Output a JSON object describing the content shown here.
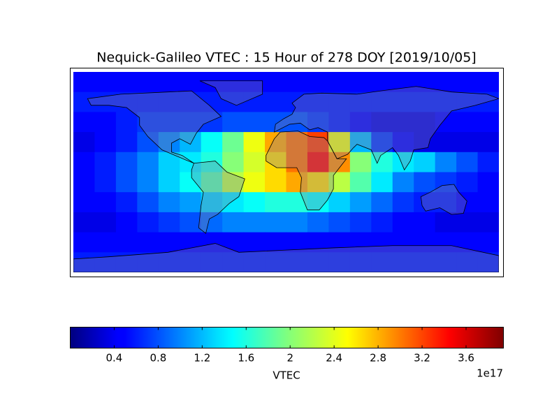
{
  "chart_data": {
    "type": "heatmap",
    "title": "Nequick-Galileo VTEC : 15 Hour of 278 DOY [2019/10/05]",
    "colormap": "jet",
    "values": [
      [
        0.5,
        0.5,
        0.5,
        0.5,
        0.5,
        0.5,
        0.5,
        0.5,
        0.5,
        0.5,
        0.5,
        0.5,
        0.5,
        0.5,
        0.5,
        0.5,
        0.5,
        0.5,
        0.5,
        0.5
      ],
      [
        0.6,
        0.6,
        0.6,
        0.6,
        0.6,
        0.6,
        0.6,
        0.6,
        0.6,
        0.6,
        0.6,
        0.6,
        0.6,
        0.6,
        0.6,
        0.6,
        0.6,
        0.6,
        0.6,
        0.6
      ],
      [
        0.5,
        0.5,
        0.6,
        0.7,
        0.7,
        0.7,
        0.7,
        0.8,
        0.8,
        0.8,
        0.8,
        0.7,
        0.6,
        0.5,
        0.4,
        0.4,
        0.4,
        0.5,
        0.5,
        0.5
      ],
      [
        0.4,
        0.5,
        0.6,
        0.8,
        1.0,
        1.2,
        1.5,
        1.9,
        2.4,
        2.8,
        3.0,
        3.2,
        2.4,
        1.2,
        0.7,
        0.5,
        0.4,
        0.4,
        0.4,
        0.4
      ],
      [
        0.5,
        0.6,
        0.8,
        1.0,
        1.3,
        1.4,
        1.6,
        2.0,
        2.3,
        2.6,
        3.0,
        3.4,
        2.9,
        2.0,
        1.6,
        1.4,
        1.3,
        1.0,
        0.8,
        0.6
      ],
      [
        0.5,
        0.6,
        0.8,
        1.0,
        1.3,
        1.5,
        1.8,
        2.2,
        2.4,
        2.6,
        2.8,
        2.6,
        2.2,
        1.8,
        1.4,
        1.0,
        0.8,
        0.7,
        0.6,
        0.5
      ],
      [
        0.5,
        0.5,
        0.6,
        0.8,
        1.0,
        1.1,
        1.3,
        1.4,
        1.5,
        1.6,
        1.6,
        1.5,
        1.3,
        1.1,
        0.9,
        0.7,
        0.6,
        0.6,
        0.5,
        0.5
      ],
      [
        0.4,
        0.4,
        0.5,
        0.6,
        0.7,
        0.8,
        0.9,
        1.0,
        1.0,
        1.0,
        1.0,
        0.9,
        0.8,
        0.7,
        0.6,
        0.5,
        0.5,
        0.4,
        0.4,
        0.4
      ],
      [
        0.5,
        0.5,
        0.5,
        0.5,
        0.5,
        0.5,
        0.5,
        0.5,
        0.5,
        0.5,
        0.5,
        0.5,
        0.5,
        0.5,
        0.5,
        0.5,
        0.5,
        0.5,
        0.5,
        0.5
      ],
      [
        0.6,
        0.6,
        0.6,
        0.6,
        0.6,
        0.6,
        0.6,
        0.6,
        0.6,
        0.6,
        0.6,
        0.6,
        0.6,
        0.6,
        0.6,
        0.6,
        0.6,
        0.6,
        0.6,
        0.6
      ]
    ],
    "clim": [
      0,
      3.94
    ],
    "colorbar_ticks": [
      0.4,
      0.8,
      1.2,
      1.6,
      2.0,
      2.4,
      2.8,
      3.2,
      3.6
    ],
    "colorbar_label": "VTEC",
    "colorbar_offset": "1e17"
  }
}
